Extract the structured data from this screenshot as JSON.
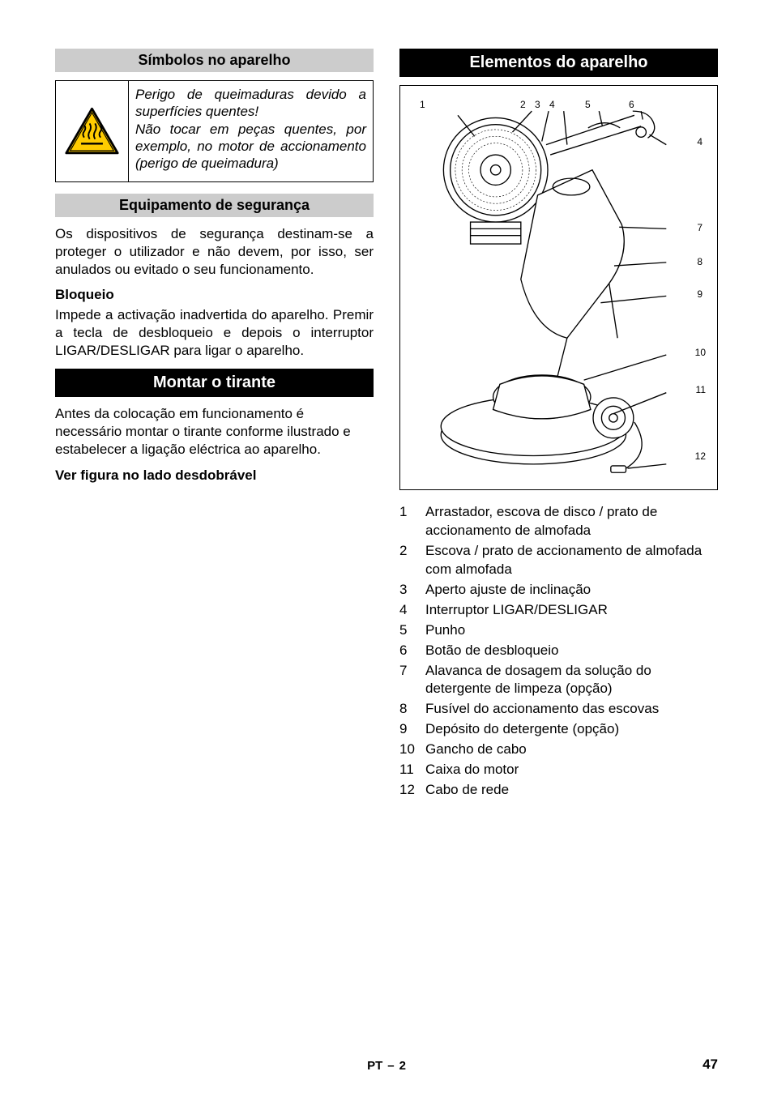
{
  "left": {
    "heading1": "Símbolos no aparelho",
    "warning_text": "Perigo de queimaduras devido a superfícies quentes!\nNão tocar em peças quentes, por exemplo, no motor de accionamento (perigo de queimadura)",
    "heading2": "Equipamento de segurança",
    "body1": "Os dispositivos de segurança destinam-se a proteger o utilizador e não devem, por isso, ser anulados ou evitado o seu funcionamento.",
    "sub1": "Bloqueio",
    "body2": "Impede a activação inadvertida do aparelho. Premir a tecla de desbloqueio e depois o interruptor LIGAR/DESLIGAR para ligar o aparelho.",
    "heading_black": "Montar o tirante",
    "body3": "Antes da colocação em funcionamento é necessário montar o tirante conforme ilustrado e estabelecer a ligação eléctrica ao aparelho.",
    "bold_line": "Ver figura no lado desdobrável"
  },
  "right": {
    "heading_black": "Elementos do aparelho",
    "callouts": [
      "1",
      "2",
      "3",
      "4",
      "5",
      "6",
      "4",
      "7",
      "8",
      "9",
      "10",
      "11",
      "12"
    ],
    "parts": [
      {
        "n": "1",
        "t": "Arrastador, escova de disco /  prato de accionamento de almofada"
      },
      {
        "n": "2",
        "t": "Escova / prato de accionamento de almofada com almofada"
      },
      {
        "n": "3",
        "t": "Aperto ajuste de inclinação"
      },
      {
        "n": "4",
        "t": "Interruptor LIGAR/DESLIGAR"
      },
      {
        "n": "5",
        "t": "Punho"
      },
      {
        "n": "6",
        "t": "Botão de desbloqueio"
      },
      {
        "n": "7",
        "t": "Alavanca de dosagem da solução do detergente de limpeza (opção)"
      },
      {
        "n": "8",
        "t": "Fusível do accionamento das escovas"
      },
      {
        "n": "9",
        "t": "Depósito do detergente (opção)"
      },
      {
        "n": "10",
        "t": "Gancho de cabo"
      },
      {
        "n": "11",
        "t": "Caixa do motor"
      },
      {
        "n": "12",
        "t": "Cabo de rede"
      }
    ]
  },
  "footer": {
    "lang_page": "PT",
    "sep": "–",
    "inner": "2",
    "page_num": "47"
  },
  "icon": {
    "triangle_stroke": "#000000",
    "triangle_fill": "#ffcc00",
    "heat_stroke": "#000000"
  },
  "diagram": {
    "stroke": "#000000",
    "bg": "#ffffff"
  }
}
